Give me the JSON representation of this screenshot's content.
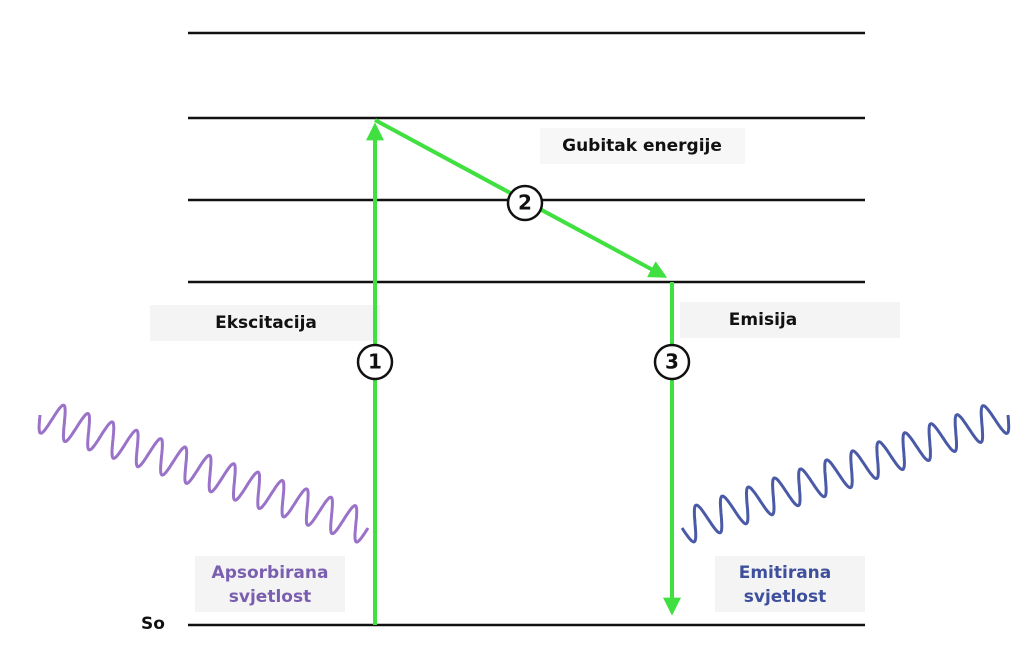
{
  "levels": {
    "ground": "So"
  },
  "steps": [
    {
      "number": "1",
      "label": "Ekscitacija"
    },
    {
      "number": "2",
      "label": "Gubitak energije"
    },
    {
      "number": "3",
      "label": "Emisija"
    }
  ],
  "light": {
    "absorbed": [
      "Apsorbirana",
      "svjetlost"
    ],
    "emitted": [
      "Emitirana",
      "svjetlost"
    ]
  }
}
